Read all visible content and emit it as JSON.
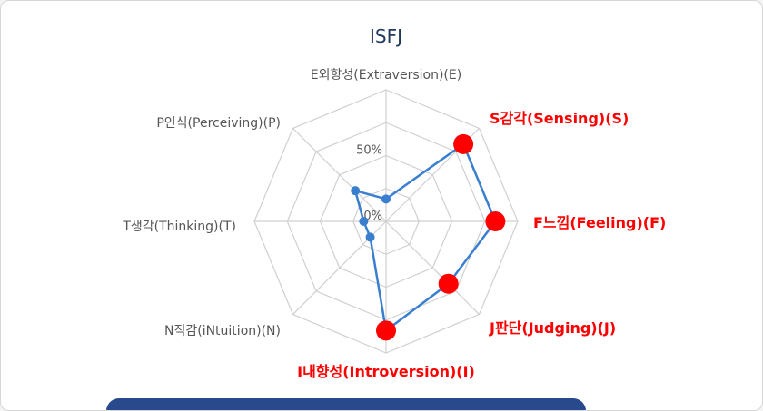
{
  "chart_data": {
    "type": "radar",
    "title": "ISFJ",
    "axes": [
      {
        "label": "E외향성(Extraversion)(E)",
        "value": 17,
        "highlight": false
      },
      {
        "label": "S감각(Sensing)(S)",
        "value": 83,
        "highlight": true
      },
      {
        "label": "F느낌(Feeling)(F)",
        "value": 83,
        "highlight": true
      },
      {
        "label": "J판단(Judging)(J)",
        "value": 67,
        "highlight": true
      },
      {
        "label": "I내향성(Introversion)(I)",
        "value": 83,
        "highlight": true
      },
      {
        "label": "N직감(iNtuition)(N)",
        "value": 17,
        "highlight": false
      },
      {
        "label": "T생각(Thinking)(T)",
        "value": 17,
        "highlight": false
      },
      {
        "label": "P인식(Perceiving)(P)",
        "value": 33,
        "highlight": false
      }
    ],
    "radial_ticks": [
      {
        "value": 0,
        "label": "0%"
      },
      {
        "value": 50,
        "label": "50%"
      }
    ],
    "range": [
      0,
      100
    ],
    "colors": {
      "line": "#3a7ed0",
      "highlight_point": "#ff0000",
      "highlight_label": "#ff0000",
      "normal_label": "#555555",
      "grid": "#d0d0d0",
      "title": "#1f3a5c"
    }
  }
}
